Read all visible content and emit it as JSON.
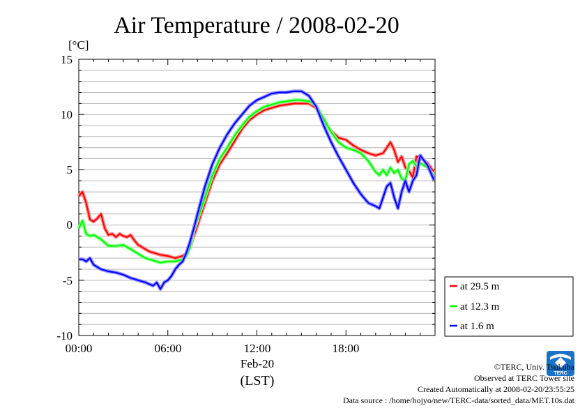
{
  "chart_data": {
    "type": "line",
    "title": "Air Temperature / 2008-02-20",
    "ylabel": "[°C]",
    "xlabel": "(LST)",
    "x_date_label": "Feb-20",
    "xlim": [
      "00:00",
      "24:00"
    ],
    "ylim": [
      -10,
      15
    ],
    "y_ticks": [
      "15",
      "10",
      "5",
      "0",
      "-5",
      "-10"
    ],
    "x_ticks": [
      "00:00",
      "06:00",
      "12:00",
      "18:00"
    ],
    "grid": true,
    "legend_position": "bottom-right, outside plot",
    "series": [
      {
        "name": "at 29.5 m",
        "color": "#ff0000",
        "x": [
          "00:00",
          "00:15",
          "00:30",
          "00:45",
          "01:00",
          "01:15",
          "01:30",
          "01:45",
          "02:00",
          "02:15",
          "02:30",
          "02:45",
          "03:00",
          "03:15",
          "03:30",
          "03:45",
          "04:00",
          "04:15",
          "04:30",
          "04:45",
          "05:00",
          "05:30",
          "06:00",
          "06:30",
          "07:00",
          "07:15",
          "07:30",
          "07:45",
          "08:00",
          "08:30",
          "09:00",
          "09:30",
          "10:00",
          "10:30",
          "11:00",
          "11:30",
          "12:00",
          "12:30",
          "13:00",
          "13:30",
          "14:00",
          "14:30",
          "15:00",
          "15:30",
          "16:00",
          "16:30",
          "17:00",
          "17:30",
          "18:00",
          "18:30",
          "19:00",
          "19:30",
          "20:00",
          "20:30",
          "21:00",
          "21:15",
          "21:30",
          "21:45",
          "22:00",
          "22:15",
          "22:30",
          "22:45",
          "23:00",
          "23:30",
          "23:55"
        ],
        "values": [
          2.6,
          3.0,
          2.0,
          0.5,
          0.3,
          0.6,
          1.0,
          -0.3,
          -0.9,
          -0.8,
          -1.1,
          -0.8,
          -1.0,
          -1.1,
          -0.9,
          -1.4,
          -1.8,
          -2.0,
          -2.2,
          -2.4,
          -2.5,
          -2.7,
          -2.8,
          -3.0,
          -2.8,
          -2.6,
          -2.0,
          -1.0,
          0.0,
          2.0,
          4.0,
          5.5,
          6.5,
          7.6,
          8.7,
          9.5,
          10.0,
          10.4,
          10.6,
          10.8,
          10.9,
          11.0,
          11.0,
          11.0,
          10.6,
          9.5,
          8.5,
          7.9,
          7.7,
          7.2,
          6.8,
          6.5,
          6.3,
          6.5,
          7.5,
          6.8,
          5.7,
          6.2,
          5.2,
          4.9,
          4.3,
          6.2,
          6.1,
          5.6,
          4.8
        ]
      },
      {
        "name": "at 12.3 m",
        "color": "#00ff00",
        "x": [
          "00:00",
          "00:15",
          "00:30",
          "00:45",
          "01:00",
          "01:30",
          "02:00",
          "02:30",
          "03:00",
          "03:30",
          "04:00",
          "04:30",
          "05:00",
          "05:30",
          "06:00",
          "06:30",
          "07:00",
          "07:15",
          "07:30",
          "07:45",
          "08:00",
          "08:30",
          "09:00",
          "09:30",
          "10:00",
          "10:30",
          "11:00",
          "11:30",
          "12:00",
          "12:30",
          "13:00",
          "13:30",
          "14:00",
          "14:30",
          "15:00",
          "15:30",
          "16:00",
          "16:30",
          "17:00",
          "17:30",
          "18:00",
          "18:30",
          "19:00",
          "19:30",
          "20:00",
          "20:15",
          "20:30",
          "20:45",
          "21:00",
          "21:15",
          "21:30",
          "21:45",
          "22:00",
          "22:15",
          "22:30",
          "22:45",
          "23:00",
          "23:30",
          "23:55"
        ],
        "values": [
          -0.3,
          0.4,
          -0.8,
          -1.0,
          -0.9,
          -1.3,
          -1.9,
          -1.9,
          -1.8,
          -2.2,
          -2.6,
          -3.0,
          -3.2,
          -3.4,
          -3.3,
          -3.3,
          -3.1,
          -2.8,
          -2.0,
          -0.5,
          0.5,
          2.5,
          4.5,
          6.0,
          7.0,
          8.1,
          9.0,
          9.8,
          10.3,
          10.7,
          10.9,
          11.1,
          11.2,
          11.3,
          11.3,
          11.2,
          10.8,
          9.6,
          8.4,
          7.5,
          7.0,
          6.8,
          6.5,
          5.8,
          4.8,
          4.5,
          5.0,
          4.5,
          5.2,
          4.7,
          5.0,
          4.2,
          4.0,
          5.5,
          5.8,
          5.3,
          5.6,
          5.2,
          4.5
        ]
      },
      {
        "name": "at 1.6 m",
        "color": "#0000ff",
        "x": [
          "00:00",
          "00:15",
          "00:30",
          "00:45",
          "01:00",
          "01:30",
          "02:00",
          "02:30",
          "03:00",
          "03:30",
          "04:00",
          "04:30",
          "05:00",
          "05:15",
          "05:30",
          "05:45",
          "06:00",
          "06:15",
          "06:30",
          "06:45",
          "07:00",
          "07:15",
          "07:30",
          "07:45",
          "08:00",
          "08:30",
          "09:00",
          "09:30",
          "10:00",
          "10:30",
          "11:00",
          "11:30",
          "12:00",
          "12:30",
          "13:00",
          "13:30",
          "14:00",
          "14:30",
          "15:00",
          "15:30",
          "16:00",
          "16:30",
          "17:00",
          "17:30",
          "18:00",
          "18:30",
          "19:00",
          "19:30",
          "20:00",
          "20:15",
          "20:30",
          "20:45",
          "21:00",
          "21:15",
          "21:30",
          "21:45",
          "22:00",
          "22:15",
          "22:30",
          "22:45",
          "23:00",
          "23:30",
          "23:55"
        ],
        "values": [
          -3.1,
          -3.1,
          -3.3,
          -3.0,
          -3.6,
          -4.0,
          -4.2,
          -4.3,
          -4.5,
          -4.8,
          -5.0,
          -5.2,
          -5.5,
          -5.2,
          -5.8,
          -5.2,
          -5.0,
          -4.6,
          -4.0,
          -3.6,
          -3.3,
          -2.5,
          -1.5,
          -0.3,
          1.0,
          3.5,
          5.5,
          7.0,
          8.2,
          9.2,
          10.0,
          10.8,
          11.3,
          11.6,
          11.9,
          12.0,
          12.0,
          12.1,
          12.1,
          11.7,
          10.7,
          9.0,
          7.5,
          6.2,
          5.0,
          3.8,
          2.8,
          2.0,
          1.7,
          1.5,
          2.5,
          3.5,
          3.8,
          2.5,
          1.5,
          3.0,
          4.0,
          3.0,
          4.0,
          4.5,
          6.3,
          5.4,
          4.1
        ]
      }
    ]
  },
  "footer": {
    "copyright": "©TERC, Univ. Tsukuba",
    "observed": "Observed at TERC Tower site",
    "created": "Created Automatically at 2008-02-20/23:55:25",
    "source": "Data source : /home/hojyo/new/TERC-data/sorted_data/MET.10s.dat"
  },
  "logo": {
    "text": "TERC",
    "color": "#1a73c8"
  }
}
